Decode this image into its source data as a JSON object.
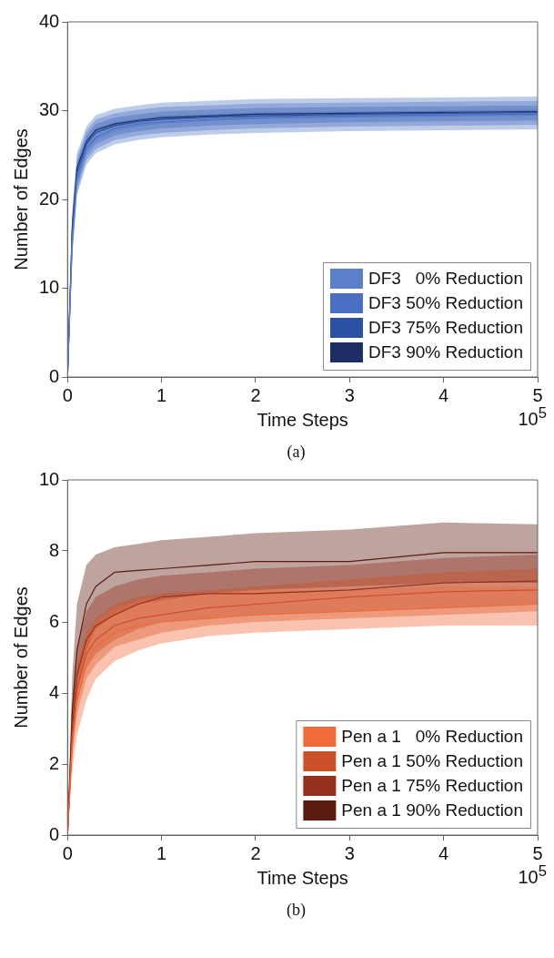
{
  "chart_data": [
    {
      "type": "line",
      "xlabel": "Time Steps",
      "ylabel": "Number of Edges",
      "annotations": [
        "10$^{5}$",
        "(a)"
      ],
      "xlim": [
        0,
        5
      ],
      "xticks": [
        0,
        1,
        2,
        3,
        4,
        5
      ],
      "ylim": [
        0,
        40
      ],
      "yticks": [
        0,
        10,
        20,
        30,
        40
      ],
      "grid": false,
      "legend": "bottom right",
      "marker": "none",
      "line_style": "solid",
      "x": [
        0,
        0.05,
        0.1,
        0.2,
        0.3,
        0.5,
        0.75,
        1,
        1.5,
        2,
        3,
        4,
        5
      ],
      "series": [
        {
          "name": "DF3   0% Reduction",
          "color": "#5b7fc9",
          "values": [
            0,
            15,
            22,
            25.5,
            26.8,
            27.8,
            28.3,
            28.6,
            28.9,
            29.1,
            29.3,
            29.4,
            29.5
          ],
          "lower": [
            0,
            13.4,
            20.4,
            23.9,
            25.2,
            26.2,
            26.7,
            27,
            27.3,
            27.5,
            27.7,
            27.8,
            27.9
          ],
          "upper": [
            0,
            18.7,
            25.2,
            28.2,
            29.5,
            30.2,
            30.6,
            30.9,
            31.1,
            31.3,
            31.4,
            31.5,
            31.6
          ]
        },
        {
          "name": "DF3 50% Reduction",
          "color": "#4a6fc0",
          "values": [
            0,
            15.5,
            22.5,
            25.8,
            27,
            28,
            28.5,
            28.7,
            29,
            29.2,
            29.4,
            29.5,
            29.6
          ],
          "lower": [
            0,
            13.9,
            20.9,
            24.4,
            25.7,
            26.7,
            27.2,
            27.5,
            27.8,
            28,
            28.2,
            28.3,
            28.4
          ],
          "upper": [
            0,
            18.2,
            24.7,
            27.7,
            29,
            29.7,
            30.1,
            30.4,
            30.6,
            30.8,
            30.9,
            31,
            31.1
          ]
        },
        {
          "name": "DF3 75% Reduction",
          "color": "#2a4fa3",
          "values": [
            0,
            16.5,
            23,
            26.2,
            27.5,
            28.3,
            28.8,
            29,
            29.3,
            29.4,
            29.6,
            29.7,
            29.8
          ],
          "lower": [
            0,
            14.4,
            21.4,
            24.9,
            26.2,
            27.2,
            27.7,
            28,
            28.3,
            28.5,
            28.7,
            28.8,
            28.9
          ],
          "upper": [
            0,
            17.7,
            24.2,
            27.2,
            28.5,
            29.2,
            29.6,
            29.9,
            30.1,
            30.3,
            30.4,
            30.5,
            30.6
          ]
        },
        {
          "name": "DF3 90% Reduction",
          "color": "#1f2f66",
          "values": [
            0,
            17,
            23.5,
            26.5,
            27.8,
            28.5,
            28.9,
            29.2,
            29.4,
            29.6,
            29.7,
            29.8,
            29.9
          ],
          "lower": [
            0,
            16.7,
            23.2,
            26.2,
            27.5,
            28.2,
            28.6,
            28.9,
            29.1,
            29.3,
            29.4,
            29.5,
            29.6
          ],
          "upper": [
            0,
            17.2,
            23.7,
            26.7,
            28,
            28.7,
            29.1,
            29.4,
            29.6,
            29.8,
            29.9,
            30,
            30.1
          ]
        }
      ]
    },
    {
      "type": "line",
      "xlabel": "Time Steps",
      "ylabel": "Number of Edges",
      "annotations": [
        "10$^{5}$",
        "(b)"
      ],
      "xlim": [
        0,
        5
      ],
      "xticks": [
        0,
        1,
        2,
        3,
        4,
        5
      ],
      "ylim": [
        0,
        10
      ],
      "yticks": [
        0,
        2,
        4,
        6,
        8,
        10
      ],
      "grid": false,
      "legend": "bottom right",
      "marker": "none",
      "line_style": "solid",
      "x": [
        0,
        0.05,
        0.1,
        0.2,
        0.3,
        0.5,
        0.75,
        1,
        1.5,
        2,
        3,
        4,
        5
      ],
      "series": [
        {
          "name": "Pen a 1   0% Reduction",
          "color": "#f06a3a",
          "values": [
            0,
            2.5,
            3.8,
            4.8,
            5.3,
            5.7,
            5.9,
            6,
            6.1,
            6.2,
            6.3,
            6.4,
            6.5
          ],
          "lower": [
            0,
            1.8,
            2.8,
            3.8,
            4.4,
            4.9,
            5.2,
            5.4,
            5.6,
            5.7,
            5.8,
            5.9,
            5.9
          ],
          "upper": [
            0,
            3.2,
            4.6,
            5.6,
            6,
            6.4,
            6.6,
            6.7,
            6.8,
            6.9,
            6.9,
            7,
            7
          ]
        },
        {
          "name": "Pen a 1 50% Reduction",
          "color": "#cc5028",
          "values": [
            0,
            2.8,
            4.1,
            5.1,
            5.5,
            5.9,
            6.1,
            6.2,
            6.4,
            6.5,
            6.7,
            6.85,
            6.9
          ],
          "lower": [
            0,
            2.2,
            3.4,
            4.4,
            4.8,
            5.3,
            5.5,
            5.7,
            5.9,
            6,
            6.1,
            6.2,
            6.3
          ],
          "upper": [
            0,
            3.4,
            4.8,
            5.7,
            6.1,
            6.5,
            6.7,
            6.8,
            6.9,
            7,
            7.2,
            7.4,
            7.5
          ]
        },
        {
          "name": "Pen a 1 75% Reduction",
          "color": "#96301c",
          "values": [
            0,
            3,
            4.5,
            5.5,
            5.9,
            6.2,
            6.5,
            6.7,
            6.8,
            6.8,
            6.9,
            7.1,
            7.15
          ],
          "lower": [
            0,
            2.4,
            3.7,
            4.7,
            5.1,
            5.5,
            5.8,
            6,
            6.1,
            6.2,
            6.3,
            6.4,
            6.5
          ],
          "upper": [
            0,
            3.7,
            5.3,
            6.3,
            6.7,
            7,
            7.2,
            7.3,
            7.4,
            7.5,
            7.6,
            7.8,
            7.9
          ]
        },
        {
          "name": "Pen a 1 90% Reduction",
          "color": "#5c1a10",
          "values": [
            0,
            3.5,
            5.2,
            6.5,
            7,
            7.4,
            7.45,
            7.5,
            7.6,
            7.7,
            7.7,
            7.95,
            7.95
          ],
          "lower": [
            0,
            2.5,
            4,
            5.2,
            5.8,
            6.2,
            6.5,
            6.6,
            6.8,
            6.9,
            7,
            7.1,
            7.1
          ],
          "upper": [
            0,
            4.5,
            6.5,
            7.6,
            7.9,
            8.1,
            8.2,
            8.3,
            8.4,
            8.5,
            8.6,
            8.8,
            8.75
          ]
        }
      ]
    }
  ]
}
